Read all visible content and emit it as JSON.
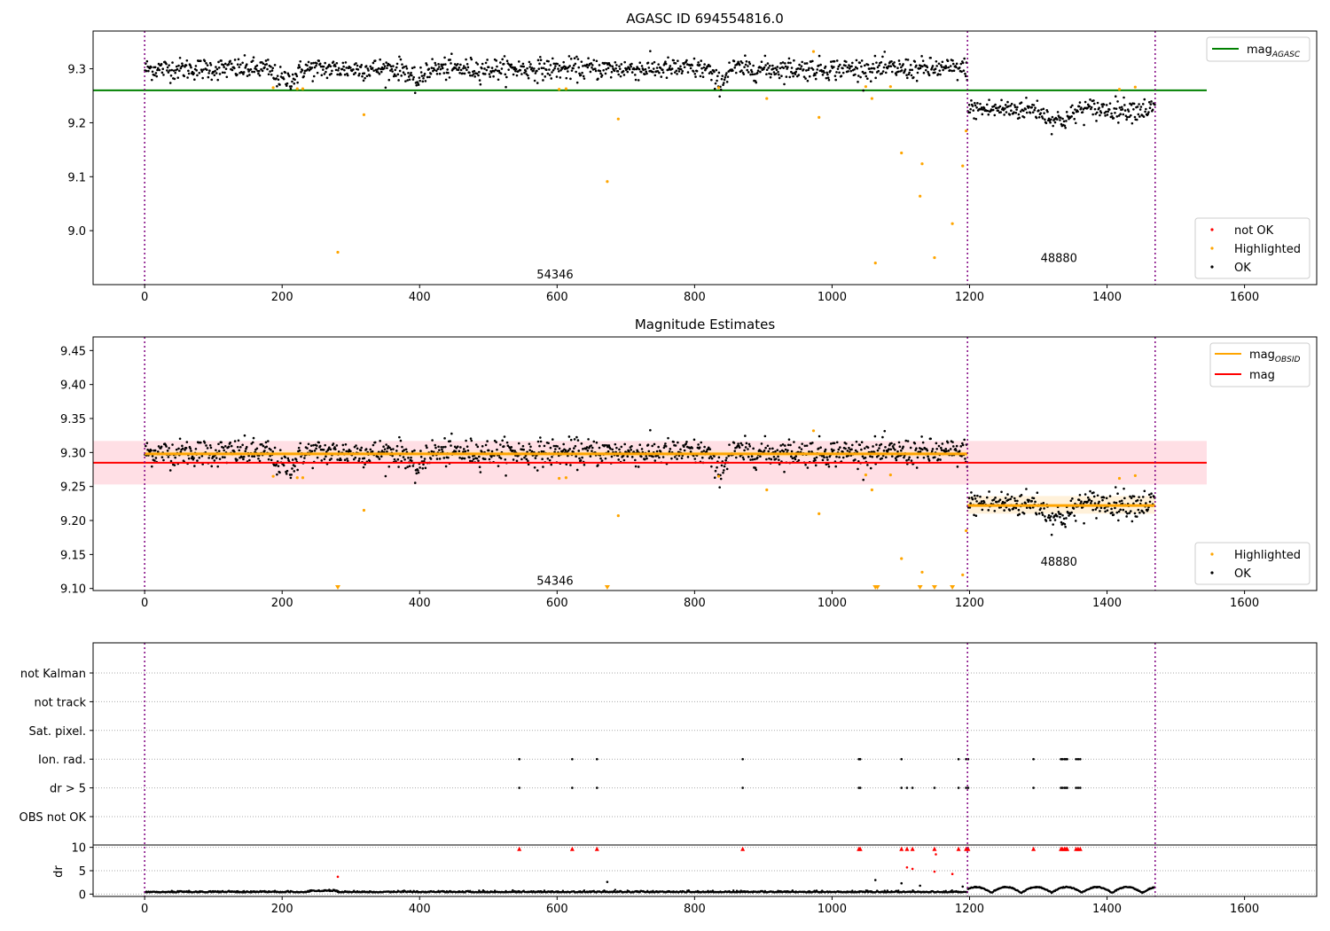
{
  "chart_data": [
    {
      "type": "scatter",
      "title": "AGASC ID 694554816.0",
      "xlim": [
        -75,
        1705
      ],
      "ylim": [
        8.9,
        9.37
      ],
      "xticks": [
        "0",
        "200",
        "400",
        "600",
        "800",
        "1000",
        "1200",
        "1400",
        "1600"
      ],
      "yticks": [
        "9.0",
        "9.1",
        "9.2",
        "9.3"
      ],
      "reference_lines": [
        {
          "label": "mag_AGASC",
          "y": 9.26,
          "x_range": [
            -75,
            1545
          ],
          "color": "#008000"
        }
      ],
      "obsid_boundaries": [
        0,
        1197,
        1470
      ],
      "segment_labels": [
        {
          "text": "54346",
          "x": 597,
          "y": 8.92
        },
        {
          "text": "48880",
          "x": 1330,
          "y": 8.95
        }
      ],
      "ok_segments": [
        {
          "x_range": [
            0,
            1197
          ],
          "baseline": 9.3,
          "noise": 0.01,
          "dips": [
            [
              180,
              230,
              9.28
            ],
            [
              380,
              410,
              9.275
            ],
            [
              820,
              850,
              9.275
            ]
          ]
        },
        {
          "x_range": [
            1197,
            1470
          ],
          "baseline": 9.225,
          "noise": 0.01,
          "dips": [
            [
              1300,
              1360,
              9.205
            ]
          ]
        }
      ],
      "highlighted": [
        [
          187,
          9.265
        ],
        [
          222,
          9.263
        ],
        [
          230,
          9.263
        ],
        [
          281,
          8.96
        ],
        [
          319,
          9.215
        ],
        [
          603,
          9.262
        ],
        [
          613,
          9.263
        ],
        [
          673,
          9.091
        ],
        [
          689,
          9.207
        ],
        [
          835,
          9.265
        ],
        [
          905,
          9.245
        ],
        [
          973,
          9.332
        ],
        [
          981,
          9.21
        ],
        [
          1049,
          9.267
        ],
        [
          1058,
          9.245
        ],
        [
          1063,
          8.94
        ],
        [
          1085,
          9.267
        ],
        [
          1101,
          9.144
        ],
        [
          1128,
          9.064
        ],
        [
          1131,
          9.124
        ],
        [
          1149,
          8.95
        ],
        [
          1175,
          9.013
        ],
        [
          1190,
          9.12
        ],
        [
          1195,
          9.185
        ],
        [
          1418,
          9.262
        ],
        [
          1441,
          9.266
        ]
      ],
      "legend": {
        "placement": "lower-right",
        "entries": [
          "not OK",
          "Highlighted",
          "OK"
        ]
      },
      "legend_top": {
        "placement": "upper-right",
        "entries": [
          "mag_AGASC"
        ]
      }
    },
    {
      "type": "scatter",
      "title": "Magnitude Estimates",
      "xlim": [
        -75,
        1705
      ],
      "ylim": [
        9.097,
        9.47
      ],
      "xticks": [
        "0",
        "200",
        "400",
        "600",
        "800",
        "1000",
        "1200",
        "1400",
        "1600"
      ],
      "yticks": [
        "9.10",
        "9.15",
        "9.20",
        "9.25",
        "9.30",
        "9.35",
        "9.40",
        "9.45"
      ],
      "mag": {
        "value": 9.285,
        "band": [
          9.253,
          9.317
        ],
        "x_range": [
          -75,
          1545
        ],
        "color": "#ff0000"
      },
      "mag_obsid": [
        {
          "value": 9.298,
          "band": [
            9.293,
            9.303
          ],
          "x_range": [
            0,
            1197
          ]
        },
        {
          "value": 9.222,
          "band": [
            9.21,
            9.236
          ],
          "x_range": [
            1197,
            1470
          ]
        }
      ],
      "offscale_markers": [
        281,
        673,
        1063,
        1066,
        1128,
        1149,
        1175
      ],
      "segment_labels": [
        {
          "text": "54346",
          "x": 597,
          "y": 9.112
        },
        {
          "text": "48880",
          "x": 1330,
          "y": 9.14
        }
      ],
      "legend": {
        "placement": "lower-right",
        "entries": [
          "Highlighted",
          "OK"
        ]
      },
      "legend_top": {
        "placement": "upper-right",
        "entries": [
          "mag_OBSID",
          "mag"
        ]
      }
    },
    {
      "type": "scatter",
      "title": "",
      "xlim": [
        -75,
        1705
      ],
      "flag_categories": [
        "not Kalman",
        "not track",
        "Sat. pixel.",
        "Ion. rad.",
        "dr > 5",
        "OBS not OK"
      ],
      "flags": {
        "Ion. rad.": [
          545,
          622,
          658,
          870,
          1039,
          1041,
          1101,
          1184,
          1195,
          1198,
          1293,
          1333,
          1335,
          1338,
          1340,
          1342,
          1355,
          1358,
          1361
        ],
        "dr > 5": [
          545,
          622,
          658,
          870,
          1039,
          1041,
          1101,
          1109,
          1117,
          1149,
          1184,
          1195,
          1198,
          1293,
          1333,
          1335,
          1338,
          1340,
          1342,
          1355,
          1358,
          1361
        ]
      },
      "dr_axis": {
        "ylabel": "dr",
        "ylim": [
          -0.5,
          10.5
        ],
        "yticks": [
          "0",
          "5",
          "10"
        ],
        "flagged_value": 9.8
      },
      "dr_points": [
        [
          281,
          3.7
        ],
        [
          673,
          2.6
        ],
        [
          1063,
          3.0
        ],
        [
          1101,
          2.3
        ],
        [
          1109,
          5.7
        ],
        [
          1117,
          5.4
        ],
        [
          1128,
          1.8
        ],
        [
          1149,
          4.8
        ],
        [
          1151,
          8.5
        ],
        [
          1175,
          4.3
        ],
        [
          1190,
          1.6
        ]
      ],
      "xticks": [
        "0",
        "200",
        "400",
        "600",
        "800",
        "1000",
        "1200",
        "1400",
        "1600"
      ]
    }
  ],
  "colors": {
    "ok": "#000000",
    "highlighted": "#ffa500",
    "not_ok": "#ff0000",
    "obsid_line": "#800080",
    "mag": "#ff0000",
    "mag_band": "#ffc0cb",
    "mag_obsid": "#ffa500",
    "mag_agasc": "#008000"
  },
  "legend_labels": {
    "mag_agasc_main": "mag",
    "mag_agasc_sub": "AGASC",
    "mag_obsid_main": "mag",
    "mag_obsid_sub": "OBSID",
    "mag": "mag",
    "not_ok": "not OK",
    "highlighted": "Highlighted",
    "ok": "OK"
  }
}
